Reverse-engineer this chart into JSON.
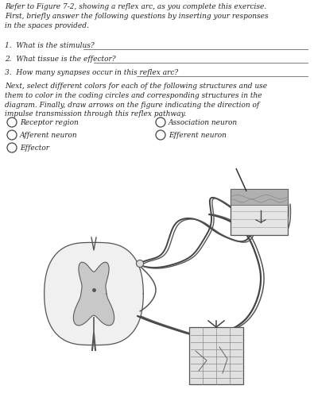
{
  "bg_color": "#ffffff",
  "title_text": "Refer to Figure 7-2, showing a reflex arc, as you complete this exercise.\nFirst, briefly answer the following questions by inserting your responses\nin the spaces provided.",
  "q1": "1.  What is the stimulus?",
  "q2": "2.  What tissue is the effector?",
  "q3": "3.  How many synapses occur in this reflex arc?",
  "instruction2": "Next, select different colors for each of the following structures and use\nthem to color in the coding circles and corresponding structures in the\ndiagram. Finally, draw arrows on the figure indicating the direction of\nimpulse transmission through this reflex pathway.",
  "legend_items": [
    [
      "Receptor region",
      "Association neuron"
    ],
    [
      "Afferent neuron",
      "Efferent neuron"
    ],
    [
      "Effector",
      ""
    ]
  ],
  "text_color": "#222222",
  "body_fontsize": 6.5
}
